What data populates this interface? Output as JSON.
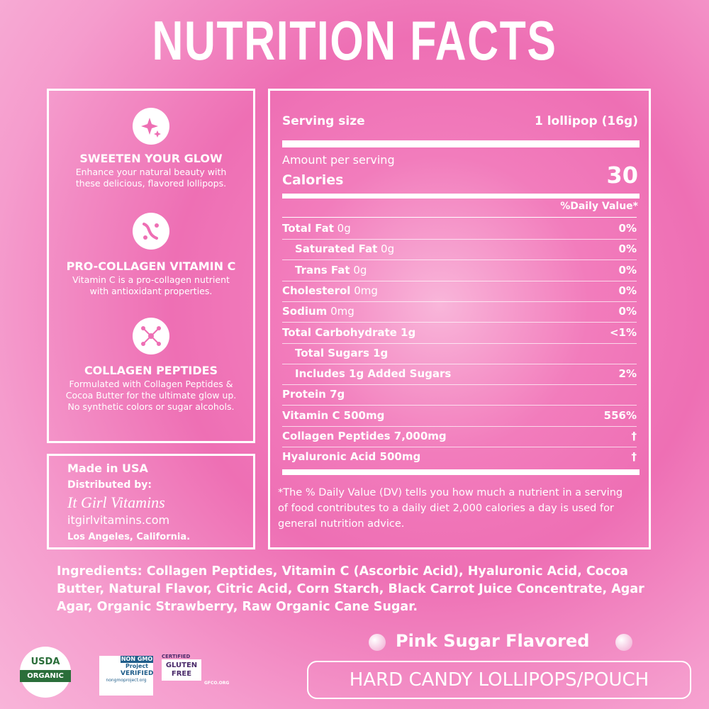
{
  "title": "NUTRITION FACTS",
  "features": [
    {
      "heading": "SWEETEN YOUR GLOW",
      "text": "Enhance your natural beauty with these delicious, flavored lollipops."
    },
    {
      "heading": "PRO-COLLAGEN VITAMIN C",
      "text": "Vitamin C is a pro-collagen nutrient with antioxidant properties."
    },
    {
      "heading": "COLLAGEN PEPTIDES",
      "text": "Formulated with Collagen Peptides & Cocoa Butter for the ultimate glow up. No synthetic colors or sugar alcohols."
    }
  ],
  "distributor": {
    "origin": "Made in USA",
    "label": "Distributed by:",
    "brand": "It Girl Vitamins",
    "website": "itgirlvitamins.com",
    "city": "Los Angeles, California."
  },
  "facts": {
    "serving_label": "Serving size",
    "serving_value": "1 lollipop (16g)",
    "amount_label": "Amount per serving",
    "calories_label": "Calories",
    "calories_value": "30",
    "dv_header": "%Daily Value*",
    "rows": [
      {
        "name": "Total Fat",
        "amount": "0g",
        "dv": "0%",
        "indent": false
      },
      {
        "name": "Saturated Fat",
        "amount": "0g",
        "dv": "0%",
        "indent": true
      },
      {
        "name": "Trans Fat",
        "amount": "0g",
        "dv": "0%",
        "indent": true
      },
      {
        "name": "Cholesterol",
        "amount": "0mg",
        "dv": "0%",
        "indent": false
      },
      {
        "name": "Sodium",
        "amount": "0mg",
        "dv": "0%",
        "indent": false
      },
      {
        "name": "Total Carbohydrate 1g",
        "dv": "<1%",
        "indent": false
      },
      {
        "name": "Total Sugars 1g",
        "indent": true
      },
      {
        "name": "Includes 1g Added Sugars",
        "dv": "2%",
        "indent": true
      },
      {
        "name": "Protein 7g",
        "indent": false
      },
      {
        "name": "Vitamin C 500mg",
        "dv": "556%",
        "indent": false
      },
      {
        "name": "Collagen Peptides 7,000mg",
        "dv": "†",
        "indent": false
      },
      {
        "name": "Hyaluronic Acid 500mg",
        "dv": "†",
        "indent": false
      }
    ],
    "footnote": "*The % Daily Value (DV) tells you how much a nutrient in a serving of food contributes to a daily diet 2,000 calories a day is used for general nutrition advice."
  },
  "ingredients": {
    "label": "Ingredients:",
    "text": "Collagen Peptides, Vitamin C (Ascorbic Acid), Hyaluronic Acid, Cocoa Butter, Natural Flavor, Citric Acid, Corn Starch, Black Carrot Juice Concentrate, Agar Agar, Organic Strawberry, Raw Organic Cane Sugar."
  },
  "flavor": "Pink Sugar Flavored",
  "product": "HARD CANDY LOLLIPOPS/POUCH",
  "badges": {
    "usda_top": "USDA",
    "usda_bottom": "ORGANIC",
    "nongmo_top": "NON GMO",
    "nongmo_sub": "Project",
    "nongmo_verified": "VERIFIED",
    "nongmo_url": "nongmoproject.org",
    "gf_top": "CERTIFIED",
    "gf_main": "GLUTEN FREE",
    "gf_url": "GFCO.ORG"
  }
}
